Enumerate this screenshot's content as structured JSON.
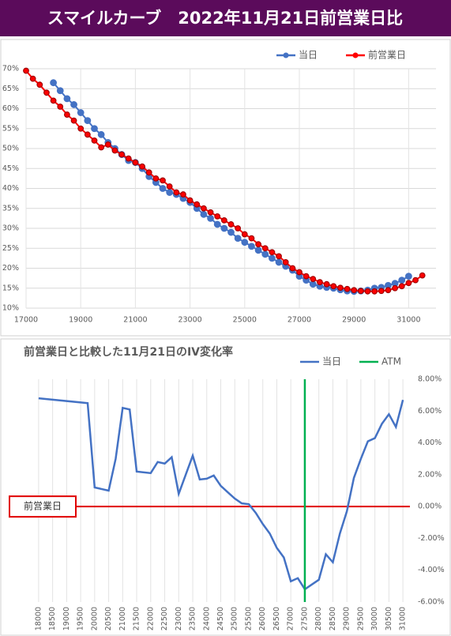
{
  "header": {
    "title": "スマイルカーブ　2022年11月21日前営業日比"
  },
  "chart_data": [
    {
      "type": "line",
      "legend": "top-right",
      "grid": "both",
      "markers": true,
      "xlim": [
        17000,
        32000
      ],
      "xticks": [
        17000,
        19000,
        21000,
        23000,
        25000,
        27000,
        29000,
        31000
      ],
      "ylim": [
        10,
        70
      ],
      "yticks": [
        {
          "value": 10,
          "label": "10%"
        },
        {
          "value": 15,
          "label": "15%"
        },
        {
          "value": 20,
          "label": "20%"
        },
        {
          "value": 25,
          "label": "25%"
        },
        {
          "value": 30,
          "label": "30%"
        },
        {
          "value": 35,
          "label": "35%"
        },
        {
          "value": 40,
          "label": "40%"
        },
        {
          "value": 45,
          "label": "45%"
        },
        {
          "value": 50,
          "label": "50%"
        },
        {
          "value": 55,
          "label": "55%"
        },
        {
          "value": 60,
          "label": "60%"
        },
        {
          "value": 65,
          "label": "65%"
        },
        {
          "value": 70,
          "label": "70%"
        }
      ],
      "series": [
        {
          "name": "当日",
          "color": "#4472c4",
          "x": [
            18000,
            18250,
            18500,
            18750,
            19000,
            19250,
            19500,
            19750,
            20000,
            20250,
            20500,
            20750,
            21000,
            21250,
            21500,
            21750,
            22000,
            22250,
            22500,
            22750,
            23000,
            23250,
            23500,
            23750,
            24000,
            24250,
            24500,
            24750,
            25000,
            25250,
            25500,
            25750,
            26000,
            26250,
            26500,
            26750,
            27000,
            27250,
            27500,
            27750,
            28000,
            28250,
            28500,
            28750,
            29000,
            29250,
            29500,
            29750,
            30000,
            30250,
            30500,
            30750,
            31000
          ],
          "values": [
            66.5,
            64.5,
            62.5,
            61,
            59,
            57,
            55,
            53.5,
            51.5,
            50,
            48.5,
            47,
            46.5,
            45,
            43,
            41.5,
            40,
            39,
            38.5,
            37.5,
            36.5,
            35,
            33.5,
            32.5,
            31,
            30,
            29,
            27.5,
            26.5,
            25.5,
            24.5,
            23.5,
            22.5,
            21.5,
            20.5,
            19.5,
            18,
            17,
            16,
            15.5,
            15.2,
            15,
            14.6,
            14.3,
            14.2,
            14.3,
            14.5,
            15,
            15.2,
            15.7,
            16.2,
            17,
            18
          ]
        },
        {
          "name": "前営業日",
          "color": "#ff0000",
          "x": [
            17000,
            17250,
            17500,
            17750,
            18000,
            18250,
            18500,
            18750,
            19000,
            19250,
            19500,
            19750,
            20000,
            20250,
            20500,
            20750,
            21000,
            21250,
            21500,
            21750,
            22000,
            22250,
            22500,
            22750,
            23000,
            23250,
            23500,
            23750,
            24000,
            24250,
            24500,
            24750,
            25000,
            25250,
            25500,
            25750,
            26000,
            26250,
            26500,
            26750,
            27000,
            27250,
            27500,
            27750,
            28000,
            28250,
            28500,
            28750,
            29000,
            29250,
            29500,
            29750,
            30000,
            30250,
            30500,
            30750,
            31000,
            31250,
            31500
          ],
          "values": [
            69.5,
            67.5,
            66,
            64,
            62,
            60.5,
            58.5,
            57,
            55,
            53.5,
            52,
            50.3,
            51,
            49.5,
            48.5,
            47.5,
            46.5,
            45.5,
            44,
            42.5,
            42,
            40.5,
            39,
            38.5,
            37,
            36,
            35,
            34,
            33,
            32,
            31,
            30,
            28.5,
            27.5,
            26,
            25,
            24,
            23,
            21.5,
            20,
            19,
            18,
            17.3,
            16.5,
            16,
            15.5,
            15.1,
            14.8,
            14.5,
            14.3,
            14.2,
            14.2,
            14.3,
            14.5,
            15,
            15.5,
            16.3,
            17,
            18.2
          ]
        }
      ]
    },
    {
      "type": "line",
      "title": "前営業日と比較した11月21日のIV変化率",
      "legend": "top-right",
      "grid": "x",
      "markers": false,
      "xlim": [
        17750,
        31250
      ],
      "xticks": [
        18000,
        18500,
        19000,
        19500,
        20000,
        20500,
        21000,
        21500,
        22000,
        22500,
        23000,
        23500,
        24000,
        24500,
        25000,
        25500,
        26000,
        26500,
        27000,
        27500,
        28000,
        28500,
        29000,
        29500,
        30000,
        30500,
        31000
      ],
      "ylim": [
        -6,
        8
      ],
      "yticks": [
        {
          "value": -6,
          "label": "-6.00%"
        },
        {
          "value": -4,
          "label": "-4.00%"
        },
        {
          "value": -2,
          "label": "-2.00%"
        },
        {
          "value": 0,
          "label": "0.00%"
        },
        {
          "value": 2,
          "label": "2.00%"
        },
        {
          "value": 4,
          "label": "4.00%"
        },
        {
          "value": 6,
          "label": "6.00%"
        },
        {
          "value": 8,
          "label": "8.00%"
        }
      ],
      "reference": {
        "label": "前営業日",
        "value": 0,
        "color": "#e00000"
      },
      "series": [
        {
          "name": "当日",
          "color": "#4472c4",
          "x": [
            18000,
            19750,
            20000,
            20500,
            20750,
            21000,
            21250,
            21500,
            22000,
            22250,
            22500,
            22750,
            23000,
            23250,
            23500,
            23750,
            24000,
            24250,
            24500,
            24750,
            25000,
            25250,
            25500,
            25750,
            26000,
            26250,
            26500,
            26750,
            27000,
            27250,
            27500,
            27750,
            28000,
            28250,
            28500,
            28750,
            29000,
            29250,
            29500,
            29750,
            30000,
            30250,
            30500,
            30750,
            31000
          ],
          "values": [
            6.8,
            6.5,
            1.2,
            1.0,
            3.0,
            6.2,
            6.1,
            2.2,
            2.1,
            2.8,
            2.7,
            3.1,
            0.8,
            2.0,
            3.2,
            1.7,
            1.75,
            1.95,
            1.3,
            0.9,
            0.5,
            0.2,
            0.15,
            -0.4,
            -1.1,
            -1.7,
            -2.6,
            -3.2,
            -4.7,
            -4.5,
            -5.2,
            -4.9,
            -4.6,
            -3.0,
            -3.5,
            -1.7,
            -0.3,
            1.8,
            3.0,
            4.1,
            4.3,
            5.2,
            5.8,
            5.0,
            6.7
          ]
        },
        {
          "name": "ATM",
          "color": "#00b050",
          "x": [
            27500,
            27500
          ],
          "values": [
            -6,
            8
          ]
        }
      ]
    }
  ]
}
